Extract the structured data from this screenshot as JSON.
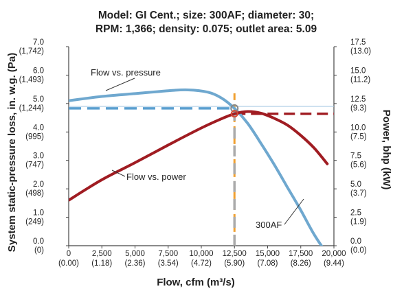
{
  "chart_data": {
    "type": "line",
    "title_lines": [
      "Model: GI Cent.; size: 300AF; diameter: 30;",
      "RPM: 1,366; density: 0.075; outlet area: 5.09"
    ],
    "xlabel": "Flow, cfm (m³/s)",
    "ylabel_left": "System static-pressure loss, in. w.g. (Pa)",
    "ylabel_right": "Power, bhp (kW)",
    "xlim": [
      0,
      20000
    ],
    "ylim_left": [
      0,
      7
    ],
    "ylim_right": [
      0,
      17.5
    ],
    "x_ticks": [
      {
        "value": 0,
        "label": "0",
        "sub": "(0.00)"
      },
      {
        "value": 2500,
        "label": "2,500",
        "sub": "(1.18)"
      },
      {
        "value": 5000,
        "label": "5,000",
        "sub": "(2.36)"
      },
      {
        "value": 7500,
        "label": "7,500",
        "sub": "(3.54)"
      },
      {
        "value": 10000,
        "label": "10,000",
        "sub": "(4.72)"
      },
      {
        "value": 12500,
        "label": "12,500",
        "sub": "(5.90)"
      },
      {
        "value": 15000,
        "label": "15,000",
        "sub": "(7.08)"
      },
      {
        "value": 17500,
        "label": "17,500",
        "sub": "(8.26)"
      },
      {
        "value": 20000,
        "label": "20,000",
        "sub": "(9.44)"
      }
    ],
    "y_left_ticks": [
      {
        "value": 0,
        "label": "0.0",
        "sub": "(0)"
      },
      {
        "value": 1,
        "label": "1.0",
        "sub": "(249)"
      },
      {
        "value": 2,
        "label": "2.0",
        "sub": "(498)"
      },
      {
        "value": 3,
        "label": "3.0",
        "sub": "(747)"
      },
      {
        "value": 4,
        "label": "4.0",
        "sub": "(995)"
      },
      {
        "value": 5,
        "label": "5.0",
        "sub": "(1,244)"
      },
      {
        "value": 6,
        "label": "6.0",
        "sub": "(1,493)"
      },
      {
        "value": 7,
        "label": "7.0",
        "sub": "(1,742)"
      }
    ],
    "y_right_ticks": [
      {
        "value": 0,
        "label": "0.0",
        "sub": "(0.0)"
      },
      {
        "value": 2.5,
        "label": "2.5",
        "sub": "(1.9)"
      },
      {
        "value": 5,
        "label": "5.0",
        "sub": "(3.7)"
      },
      {
        "value": 7.5,
        "label": "7.5",
        "sub": "(5.6)"
      },
      {
        "value": 10,
        "label": "10.0",
        "sub": "(7.5)"
      },
      {
        "value": 12.5,
        "label": "12.5",
        "sub": "(9.3)"
      },
      {
        "value": 15,
        "label": "15.0",
        "sub": "(11.2)"
      },
      {
        "value": 17.5,
        "label": "17.5",
        "sub": "(13.0)"
      }
    ],
    "series": [
      {
        "name": "Flow vs. pressure",
        "axis": "left",
        "color": "#6fa8cf",
        "x": [
          0,
          2500,
          5000,
          7500,
          9000,
          10500,
          11500,
          12500,
          13500,
          14500,
          15500,
          16500,
          17500,
          18500,
          19500
        ],
        "y": [
          5.1,
          5.25,
          5.35,
          5.45,
          5.48,
          5.4,
          5.2,
          4.83,
          4.3,
          3.6,
          2.85,
          2.05,
          1.25,
          0.4,
          -0.3
        ]
      },
      {
        "name": "Flow vs. power",
        "axis": "right",
        "color": "#a01c22",
        "x": [
          0,
          2500,
          5000,
          7500,
          10000,
          11500,
          12500,
          13500,
          14500,
          15500,
          16500,
          17500,
          18500,
          19500
        ],
        "y": [
          4.0,
          5.8,
          7.3,
          8.85,
          10.35,
          11.15,
          11.6,
          11.8,
          11.65,
          11.2,
          10.6,
          9.7,
          8.6,
          7.2
        ]
      }
    ],
    "operating_point": {
      "x": 12500,
      "pressure": 4.83,
      "power": 11.6,
      "pressure_color": "#5a9fd0",
      "power_color": "#a01c22",
      "vertical_color": "#f0a030"
    },
    "reference_line": {
      "y": 4.9,
      "color": "#9cc3e0"
    },
    "annotations": [
      {
        "text": "Flow vs. pressure",
        "target": "pressure"
      },
      {
        "text": "Flow vs. power",
        "target": "power"
      },
      {
        "text": "300AF",
        "target": "pressure"
      }
    ],
    "grid": false
  }
}
